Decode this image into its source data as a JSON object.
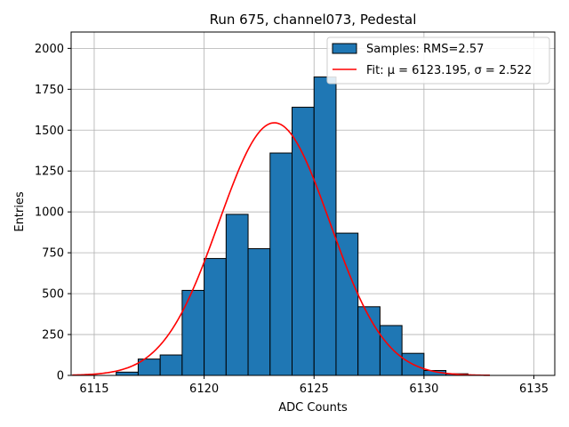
{
  "chart_data": {
    "type": "bar",
    "title": "Run 675, channel073, Pedestal",
    "xlabel": "ADC Counts",
    "ylabel": "Entries",
    "xlim": [
      6113.95,
      6135.95
    ],
    "ylim": [
      0,
      2100
    ],
    "xticks": [
      6115,
      6120,
      6125,
      6130,
      6135
    ],
    "yticks": [
      0,
      250,
      500,
      750,
      1000,
      1250,
      1500,
      1750,
      2000
    ],
    "grid": true,
    "legend_position": "top-right",
    "bin_width": 1,
    "series": [
      {
        "name": "Samples: RMS=2.57",
        "kind": "histogram",
        "color": "#1f77b4",
        "bins": [
          {
            "x": 6115,
            "value": 0
          },
          {
            "x": 6116,
            "value": 20
          },
          {
            "x": 6117,
            "value": 100
          },
          {
            "x": 6118,
            "value": 125
          },
          {
            "x": 6119,
            "value": 520
          },
          {
            "x": 6120,
            "value": 715
          },
          {
            "x": 6121,
            "value": 985
          },
          {
            "x": 6122,
            "value": 775
          },
          {
            "x": 6123,
            "value": 1360
          },
          {
            "x": 6124,
            "value": 1640
          },
          {
            "x": 6125,
            "value": 1825
          },
          {
            "x": 6126,
            "value": 870
          },
          {
            "x": 6127,
            "value": 420
          },
          {
            "x": 6128,
            "value": 305
          },
          {
            "x": 6129,
            "value": 135
          },
          {
            "x": 6130,
            "value": 30
          },
          {
            "x": 6131,
            "value": 10
          }
        ]
      },
      {
        "name": "Fit: μ = 6123.195, σ = 2.522",
        "kind": "gaussian",
        "color": "#ff0000",
        "mu": 6123.195,
        "sigma": 2.522,
        "amplitude": 1545,
        "x_range": [
          6114,
          6133
        ]
      }
    ]
  }
}
